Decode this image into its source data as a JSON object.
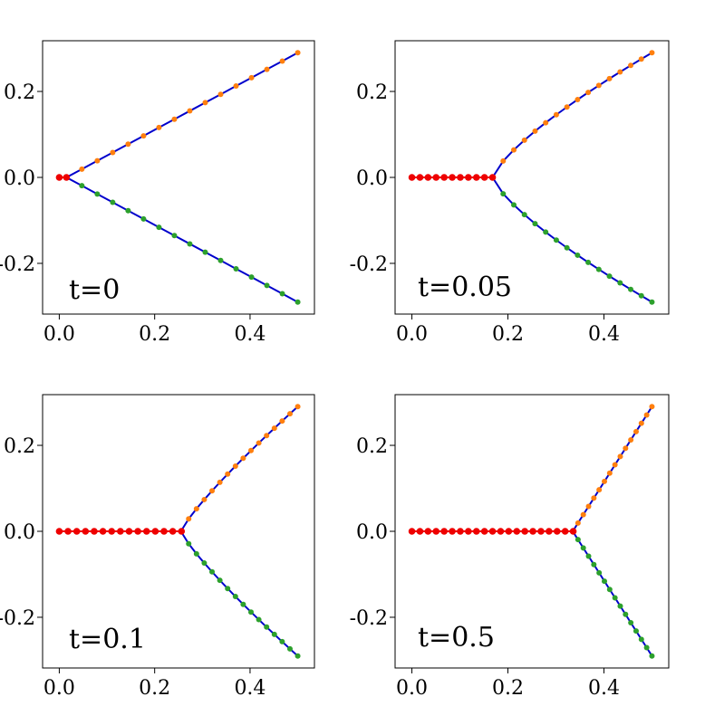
{
  "chart_data": [
    {
      "type": "line",
      "annotation": "t=0",
      "xlim": [
        -0.035,
        0.535
      ],
      "ylim": [
        -0.318,
        0.318
      ],
      "xticks": [
        {
          "value": 0.0,
          "label": "0.0"
        },
        {
          "value": 0.2,
          "label": "0.2"
        },
        {
          "value": 0.4,
          "label": "0.4"
        }
      ],
      "yticks": [
        {
          "value": 0.2,
          "label": "0.2"
        },
        {
          "value": 0.0,
          "label": "0.0"
        },
        {
          "value": -0.2,
          "label": "-0.2"
        }
      ],
      "junction": [
        0.015,
        0.0
      ],
      "end": 0.5,
      "curve_power": 1.0,
      "stem_points": [
        0.0,
        0.015
      ],
      "n_branch_points": 15,
      "grid": false
    },
    {
      "type": "line",
      "annotation": "t=0.05",
      "xlim": [
        -0.035,
        0.535
      ],
      "ylim": [
        -0.318,
        0.318
      ],
      "xticks": [
        {
          "value": 0.0,
          "label": "0.0"
        },
        {
          "value": 0.2,
          "label": "0.2"
        },
        {
          "value": 0.4,
          "label": "0.4"
        }
      ],
      "yticks": [
        {
          "value": 0.2,
          "label": "0.2"
        },
        {
          "value": 0.0,
          "label": "0.0"
        },
        {
          "value": -0.2,
          "label": "-0.2"
        }
      ],
      "junction": [
        0.168,
        0.0
      ],
      "end": 0.5,
      "curve_power": 0.75,
      "stem_points": [
        0.0,
        0.0168,
        0.0336,
        0.0504,
        0.0672,
        0.084,
        0.1008,
        0.1176,
        0.1344,
        0.1512,
        0.168
      ],
      "n_branch_points": 15,
      "grid": false
    },
    {
      "type": "line",
      "annotation": "t=0.1",
      "xlim": [
        -0.035,
        0.535
      ],
      "ylim": [
        -0.318,
        0.318
      ],
      "xticks": [
        {
          "value": 0.0,
          "label": "0.0"
        },
        {
          "value": 0.2,
          "label": "0.2"
        },
        {
          "value": 0.4,
          "label": "0.4"
        }
      ],
      "yticks": [
        {
          "value": 0.2,
          "label": "0.2"
        },
        {
          "value": 0.0,
          "label": "0.0"
        },
        {
          "value": -0.2,
          "label": "-0.2"
        }
      ],
      "junction": [
        0.255,
        0.0
      ],
      "end": 0.5,
      "curve_power": 0.85,
      "stem_points": [
        0.0,
        0.0183,
        0.0366,
        0.0549,
        0.0732,
        0.0915,
        0.1098,
        0.1281,
        0.1464,
        0.1647,
        0.183,
        0.2013,
        0.2196,
        0.2379,
        0.2562
      ],
      "n_branch_points": 15,
      "grid": false
    },
    {
      "type": "line",
      "annotation": "t=0.5",
      "xlim": [
        -0.035,
        0.535
      ],
      "ylim": [
        -0.318,
        0.318
      ],
      "xticks": [
        {
          "value": 0.0,
          "label": "0.0"
        },
        {
          "value": 0.2,
          "label": "0.2"
        },
        {
          "value": 0.4,
          "label": "0.4"
        }
      ],
      "yticks": [
        {
          "value": 0.2,
          "label": "0.2"
        },
        {
          "value": 0.0,
          "label": "0.0"
        },
        {
          "value": -0.2,
          "label": "-0.2"
        }
      ],
      "junction": [
        0.335,
        0.0
      ],
      "end": 0.5,
      "curve_power": 1.0,
      "stem_points": [
        0.0,
        0.0168,
        0.0336,
        0.0504,
        0.0672,
        0.084,
        0.1008,
        0.1176,
        0.1344,
        0.1512,
        0.168,
        0.1848,
        0.2016,
        0.2184,
        0.2352,
        0.252,
        0.2688,
        0.2856,
        0.3024,
        0.3192,
        0.336
      ],
      "n_branch_points": 15,
      "grid": false
    }
  ],
  "colors": {
    "stem": "#ee0000",
    "branch_line": "#0000cc",
    "upper_points": "#ff7f0e",
    "lower_points": "#2ca02c",
    "axes": "#000000"
  }
}
